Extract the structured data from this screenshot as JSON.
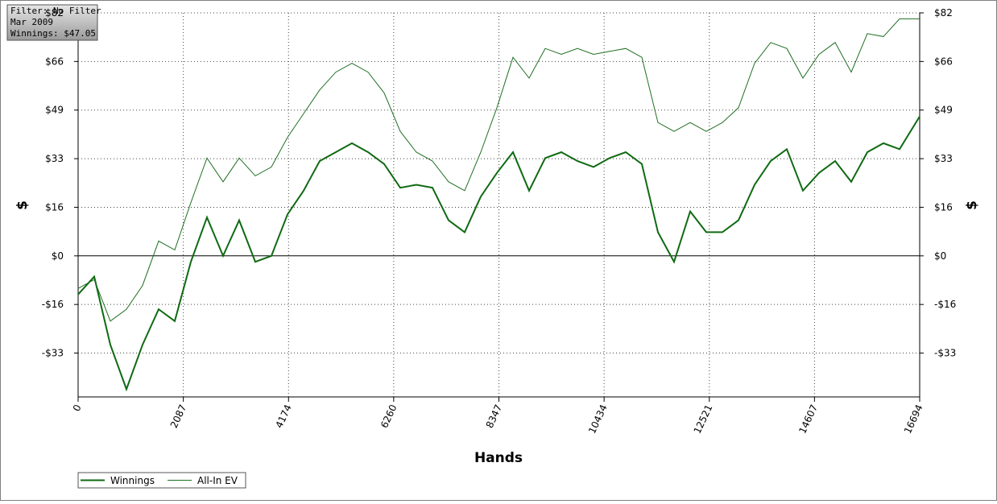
{
  "chart_data": {
    "type": "line",
    "annotations": [
      "Filter: No Filter",
      "Mar 2009",
      "Winnings: $47.05"
    ],
    "x_label": "Hands",
    "y_label": "$",
    "y2_label": "$",
    "x": [
      0,
      320,
      639,
      959,
      1278,
      1598,
      1917,
      2237,
      2556,
      2876,
      3195,
      3515,
      3834,
      4154,
      4473,
      4793,
      5112,
      5432,
      5751,
      6071,
      6390,
      6710,
      7029,
      7349,
      7668,
      7988,
      8307,
      8627,
      8946,
      9266,
      9585,
      9905,
      10224,
      10544,
      10863,
      11183,
      11502,
      11822,
      12141,
      12461,
      12780,
      13100,
      13419,
      13739,
      14058,
      14378,
      14697,
      15017,
      15336,
      15656,
      15975,
      16295,
      16694
    ],
    "series": [
      {
        "name": "Winnings",
        "color": "#0f6a12",
        "width": 2,
        "values": [
          -13,
          -7,
          -30,
          -45,
          -30,
          -18,
          -22,
          -2,
          13,
          0,
          12,
          -2,
          0,
          14,
          22,
          32,
          35,
          38,
          35,
          31,
          23,
          24,
          23,
          12,
          8,
          20,
          28,
          35,
          22,
          33,
          35,
          32,
          30,
          33,
          35,
          31,
          8,
          -2,
          15,
          8,
          8,
          12,
          24,
          32,
          36,
          22,
          28,
          32,
          25,
          35,
          38,
          36,
          47.05
        ]
      },
      {
        "name": "All-In EV",
        "color": "#1f6f22",
        "width": 1,
        "values": [
          -11,
          -8,
          -22,
          -18,
          -10,
          5,
          2,
          18,
          33,
          25,
          33,
          27,
          30,
          40,
          48,
          56,
          62,
          65,
          62,
          55,
          42,
          35,
          32,
          25,
          22,
          35,
          50,
          67,
          60,
          70,
          68,
          70,
          68,
          69,
          70,
          67,
          45,
          42,
          45,
          42,
          45,
          50,
          65,
          72,
          70,
          60,
          68,
          72,
          62,
          75,
          74,
          80,
          80
        ]
      }
    ],
    "xlim": [
      0,
      16694
    ],
    "xticks": [
      0,
      2087,
      4174,
      6260,
      8347,
      10434,
      12521,
      14607,
      16694
    ],
    "ylim": [
      -47.6,
      82
    ],
    "yticks": [
      {
        "value": -32.8,
        "label": "-$33"
      },
      {
        "value": -16.4,
        "label": "-$16"
      },
      {
        "value": 0,
        "label": "$0"
      },
      {
        "value": 16.4,
        "label": "$16"
      },
      {
        "value": 32.8,
        "label": "$33"
      },
      {
        "value": 49.2,
        "label": "$49"
      },
      {
        "value": 65.6,
        "label": "$66"
      },
      {
        "value": 82,
        "label": "$82"
      }
    ],
    "grid": true,
    "legend": "bottom-left"
  }
}
